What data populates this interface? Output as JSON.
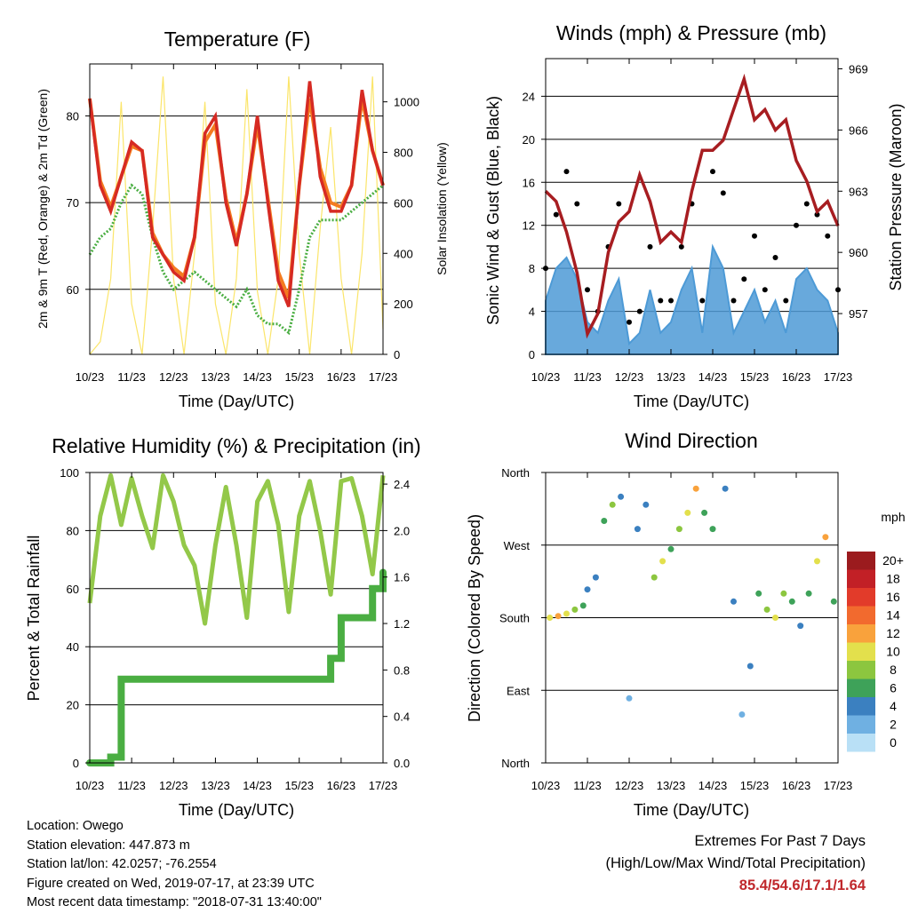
{
  "colors": {
    "temp_2m": "#d62a23",
    "temp_9m": "#f47b20",
    "dewpoint": "#4aae42",
    "insolation": "#fbe56a",
    "wind": "#4d9ad6",
    "gust": "#000000",
    "pressure": "#a71d21",
    "rh": "#93c849",
    "precip": "#4aae42"
  },
  "x_ticks": [
    "10/23",
    "11/23",
    "12/23",
    "13/23",
    "14/23",
    "15/23",
    "16/23",
    "17/23"
  ],
  "x_title": "Time (Day/UTC)",
  "panels": {
    "temperature": {
      "title": "Temperature (F)",
      "ylabel_left": "2m & 9m T (Red, Orange) & 2m Td (Green)",
      "ylabel_right": "Solar Insolation (Yellow)",
      "left_ticks": [
        "60",
        "70",
        "80"
      ],
      "right_ticks": [
        "0",
        "200",
        "400",
        "600",
        "800",
        "1000"
      ]
    },
    "winds": {
      "title": "Winds (mph) & Pressure (mb)",
      "ylabel_left": "Sonic Wind & Gust (Blue, Black)",
      "ylabel_right": "Station Pressure (Maroon)",
      "left_ticks": [
        "0",
        "4",
        "8",
        "12",
        "16",
        "20",
        "24"
      ],
      "right_ticks": [
        "957",
        "960",
        "963",
        "966",
        "969"
      ]
    },
    "humidity": {
      "title": "Relative Humidity (%) & Precipitation (in)",
      "ylabel_left": "Percent & Total Rainfall",
      "left_ticks": [
        "0",
        "20",
        "40",
        "60",
        "80",
        "100"
      ],
      "right_ticks": [
        "0.0",
        "0.4",
        "0.8",
        "1.2",
        "1.6",
        "2.0",
        "2.4"
      ]
    },
    "direction": {
      "title": "Wind Direction",
      "ylabel_left": "Direction (Colored By Speed)",
      "left_ticks": [
        "North",
        "East",
        "South",
        "West",
        "North"
      ],
      "legend_title": "mph",
      "legend_labels": [
        "20+",
        "18",
        "16",
        "14",
        "12",
        "10",
        "8",
        "6",
        "4",
        "2",
        "0"
      ],
      "legend_colors": [
        "#9b1b1e",
        "#c22026",
        "#e23b2a",
        "#f26a2e",
        "#f9a23c",
        "#e3e04c",
        "#8cc63f",
        "#3ea259",
        "#3b80c0",
        "#6fb0e2",
        "#b9e0f6"
      ]
    }
  },
  "info": {
    "location": "Location: Owego",
    "elevation": "Station elevation: 447.873 m",
    "latlon": "Station lat/lon: 42.0257; -76.2554",
    "created": "Figure created on Wed, 2019-07-17, at 23:39 UTC",
    "timestamp": "Most recent data timestamp: \"2018-07-31 13:40:00\""
  },
  "extremes": {
    "heading": "Extremes For Past 7 Days",
    "sub": "(High/Low/Max Wind/Total Precipitation)",
    "values": "85.4/54.6/17.1/1.64"
  },
  "chart_data": [
    {
      "type": "line",
      "title": "Temperature (F)",
      "xlabel": "Time (Day/UTC)",
      "ylabel": "2m & 9m T (Red, Orange) & 2m Td (Green)",
      "y2label": "Solar Insolation (Yellow)",
      "x": [
        0,
        0.25,
        0.5,
        0.75,
        1,
        1.25,
        1.5,
        1.75,
        2,
        2.25,
        2.5,
        2.75,
        3,
        3.25,
        3.5,
        3.75,
        4,
        4.25,
        4.5,
        4.75,
        5,
        5.25,
        5.5,
        5.75,
        6,
        6.25,
        6.5,
        6.75,
        7
      ],
      "ylim": [
        52.5,
        86
      ],
      "y2lim": [
        0,
        1150
      ],
      "series": [
        {
          "name": "2m T",
          "axis": "left",
          "values": [
            82,
            72,
            69,
            73,
            77,
            76,
            66,
            64,
            62,
            61,
            66,
            78,
            80,
            70,
            65,
            71,
            80,
            70,
            61,
            58,
            72,
            84,
            73,
            69,
            69,
            72,
            83,
            76,
            72
          ]
        },
        {
          "name": "9m T",
          "axis": "left",
          "values": [
            82,
            72.5,
            69.5,
            73,
            76.5,
            76,
            66.5,
            64,
            62.5,
            61.5,
            66,
            77,
            79,
            70.5,
            65.5,
            71,
            79,
            70.5,
            62,
            59,
            72,
            82,
            74,
            70,
            69.5,
            72,
            82,
            76,
            72
          ]
        },
        {
          "name": "2m Td",
          "axis": "left",
          "values": [
            64,
            66,
            67,
            70,
            72,
            71,
            66,
            62,
            60,
            61,
            62,
            61,
            60,
            59,
            58,
            60,
            57,
            56,
            56,
            55,
            60,
            66,
            68,
            68,
            68,
            69,
            70,
            71,
            72
          ]
        },
        {
          "name": "Solar Insolation",
          "axis": "right",
          "values": [
            0,
            50,
            300,
            1000,
            200,
            0,
            500,
            1100,
            300,
            0,
            400,
            1000,
            200,
            0,
            300,
            1050,
            250,
            0,
            300,
            1100,
            400,
            0,
            500,
            900,
            300,
            0,
            400,
            1100,
            100
          ]
        }
      ]
    },
    {
      "type": "line",
      "title": "Winds (mph) & Pressure (mb)",
      "xlabel": "Time (Day/UTC)",
      "ylabel": "Sonic Wind & Gust (Blue, Black)",
      "y2label": "Station Pressure (Maroon)",
      "x": [
        0,
        0.25,
        0.5,
        0.75,
        1,
        1.25,
        1.5,
        1.75,
        2,
        2.25,
        2.5,
        2.75,
        3,
        3.25,
        3.5,
        3.75,
        4,
        4.25,
        4.5,
        4.75,
        5,
        5.25,
        5.5,
        5.75,
        6,
        6.25,
        6.5,
        6.75,
        7
      ],
      "ylim": [
        0,
        27.5
      ],
      "y2lim": [
        955,
        969.5
      ],
      "series": [
        {
          "name": "Sonic Wind",
          "axis": "left",
          "values": [
            5,
            8,
            9,
            7,
            3,
            2,
            5,
            7,
            1,
            2,
            6,
            2,
            3,
            6,
            8,
            2,
            10,
            8,
            2,
            4,
            6,
            3,
            5,
            2,
            7,
            8,
            6,
            5,
            2
          ]
        },
        {
          "name": "Gust",
          "axis": "left",
          "values": [
            8,
            13,
            17,
            14,
            6,
            4,
            10,
            14,
            3,
            4,
            10,
            5,
            5,
            10,
            14,
            5,
            17,
            15,
            5,
            7,
            11,
            6,
            9,
            5,
            12,
            14,
            13,
            11,
            6
          ]
        },
        {
          "name": "Station Pressure",
          "axis": "right",
          "values": [
            963,
            962.5,
            961,
            959,
            956,
            957,
            960,
            961.5,
            962,
            963.8,
            962.5,
            960.5,
            961,
            960.5,
            963,
            965,
            965,
            965.5,
            967,
            968.5,
            966.5,
            967,
            966,
            966.5,
            964.5,
            963.5,
            962,
            962.5,
            961.3
          ]
        }
      ]
    },
    {
      "type": "line",
      "title": "Relative Humidity (%) & Precipitation (in)",
      "xlabel": "Time (Day/UTC)",
      "ylabel": "Percent & Total Rainfall",
      "x": [
        0,
        0.25,
        0.5,
        0.75,
        1,
        1.25,
        1.5,
        1.75,
        2,
        2.25,
        2.5,
        2.75,
        3,
        3.25,
        3.5,
        3.75,
        4,
        4.25,
        4.5,
        4.75,
        5,
        5.25,
        5.5,
        5.75,
        6,
        6.25,
        6.5,
        6.75,
        7
      ],
      "ylim": [
        0,
        100
      ],
      "y2lim": [
        0,
        2.5
      ],
      "series": [
        {
          "name": "Relative Humidity",
          "axis": "left",
          "values": [
            55,
            85,
            99,
            82,
            98,
            85,
            74,
            99,
            90,
            75,
            68,
            48,
            75,
            95,
            75,
            50,
            90,
            97,
            82,
            52,
            85,
            97,
            80,
            58,
            97,
            98,
            85,
            65,
            99
          ]
        },
        {
          "name": "Total Precipitation",
          "axis": "right",
          "values": [
            0,
            0,
            0.05,
            0.72,
            0.72,
            0.72,
            0.72,
            0.72,
            0.72,
            0.72,
            0.72,
            0.72,
            0.72,
            0.72,
            0.72,
            0.72,
            0.72,
            0.72,
            0.72,
            0.72,
            0.72,
            0.72,
            0.72,
            0.9,
            1.25,
            1.25,
            1.25,
            1.5,
            1.64
          ]
        }
      ]
    },
    {
      "type": "scatter",
      "title": "Wind Direction",
      "xlabel": "Time (Day/UTC)",
      "ylabel": "Direction (Colored By Speed)",
      "y_categories": [
        "North",
        "East",
        "South",
        "West",
        "North"
      ],
      "ylim": [
        0,
        360
      ],
      "color_scale": {
        "title": "mph",
        "values": [
          0,
          2,
          4,
          6,
          8,
          10,
          12,
          14,
          16,
          18,
          20
        ]
      },
      "points": [
        [
          0.1,
          180,
          10
        ],
        [
          0.3,
          182,
          12
        ],
        [
          0.5,
          185,
          9
        ],
        [
          0.7,
          190,
          7
        ],
        [
          0.9,
          195,
          6
        ],
        [
          1.0,
          215,
          4
        ],
        [
          1.2,
          230,
          3
        ],
        [
          1.4,
          300,
          6
        ],
        [
          1.6,
          320,
          8
        ],
        [
          1.8,
          330,
          4
        ],
        [
          2.0,
          80,
          2
        ],
        [
          2.2,
          290,
          3
        ],
        [
          2.4,
          320,
          4
        ],
        [
          2.6,
          230,
          8
        ],
        [
          2.8,
          250,
          9
        ],
        [
          3.0,
          265,
          6
        ],
        [
          3.2,
          290,
          8
        ],
        [
          3.4,
          310,
          10
        ],
        [
          3.6,
          340,
          11
        ],
        [
          3.8,
          310,
          6
        ],
        [
          4.0,
          290,
          5
        ],
        [
          4.3,
          340,
          4
        ],
        [
          4.5,
          200,
          3
        ],
        [
          4.7,
          60,
          2
        ],
        [
          4.9,
          120,
          3
        ],
        [
          5.1,
          210,
          6
        ],
        [
          5.3,
          190,
          8
        ],
        [
          5.5,
          180,
          10
        ],
        [
          5.7,
          210,
          7
        ],
        [
          5.9,
          200,
          6
        ],
        [
          6.1,
          170,
          4
        ],
        [
          6.3,
          210,
          6
        ],
        [
          6.5,
          250,
          9
        ],
        [
          6.7,
          280,
          12
        ],
        [
          6.9,
          200,
          5
        ]
      ]
    }
  ]
}
